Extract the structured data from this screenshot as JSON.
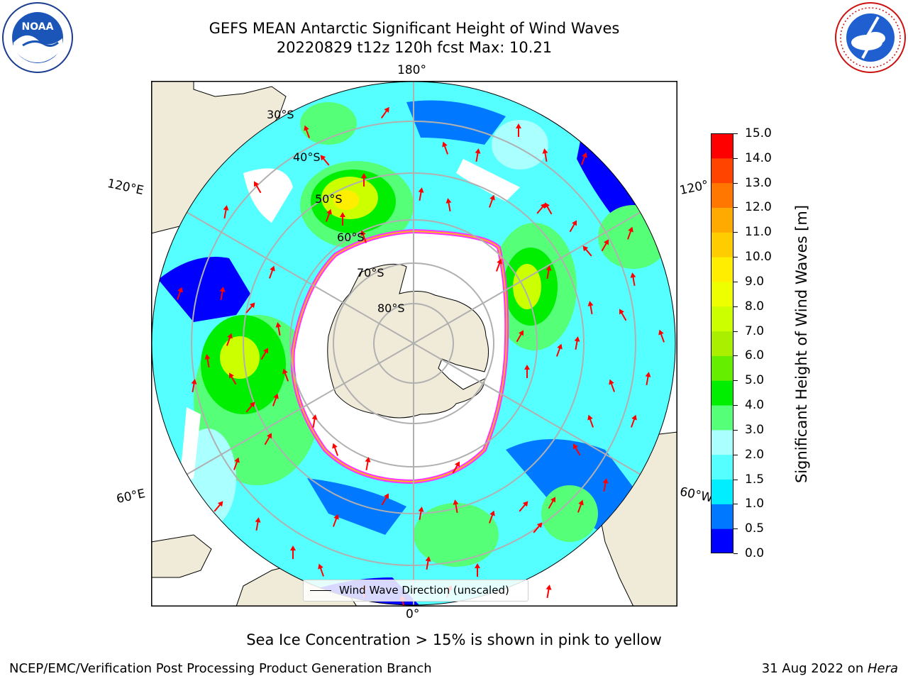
{
  "title": {
    "line1": "GEFS MEAN Antarctic Significant Height of Wind Waves",
    "line2": "20220829 t12z 120h fcst   Max: 10.21"
  },
  "map": {
    "projection": "south-polar-stereographic",
    "longitude_labels": {
      "top": "180°",
      "bottom": "0°",
      "upper_left": "120°E",
      "lower_left": "60°E",
      "upper_right": "120°",
      "lower_right": "60°W"
    },
    "latitude_labels": [
      "30°S",
      "40°S",
      "50°S",
      "60°S",
      "70°S",
      "80°S"
    ],
    "land_color": "#efebd8",
    "open_ocean_color": "#ffffff",
    "sea_ice_colors": [
      "#ff33ff",
      "#ffb020",
      "#ffff00"
    ]
  },
  "colorbar": {
    "label": "Significant Height of Wind Waves [m]",
    "ticks": [
      "0.0",
      "0.5",
      "1.0",
      "1.5",
      "2.0",
      "3.0",
      "4.0",
      "5.0",
      "6.0",
      "7.0",
      "8.0",
      "9.0",
      "10.0",
      "11.0",
      "12.0",
      "13.0",
      "14.0",
      "15.0"
    ],
    "colors": [
      "#0000ff",
      "#0078ff",
      "#00eeff",
      "#55ffff",
      "#aaffff",
      "#55ff78",
      "#00ee00",
      "#66ee00",
      "#aaee00",
      "#ccff00",
      "#eeff00",
      "#ffee00",
      "#ffcc00",
      "#ffaa00",
      "#ff7700",
      "#ff4400",
      "#ff0000"
    ]
  },
  "legend": {
    "label": "Wind Wave Direction (unscaled)"
  },
  "note": "Sea Ice Concentration > 15% is shown in pink to yellow",
  "footer": {
    "left": "NCEP/EMC/Verification Post Processing Product Generation Branch",
    "right_prefix": "31 Aug 2022 on ",
    "right_host": "Hera"
  },
  "logos": {
    "noaa": "NOAA",
    "nws_text": "NATIONAL WEATHER SERVICE"
  },
  "arrow_color": "#ff0000"
}
